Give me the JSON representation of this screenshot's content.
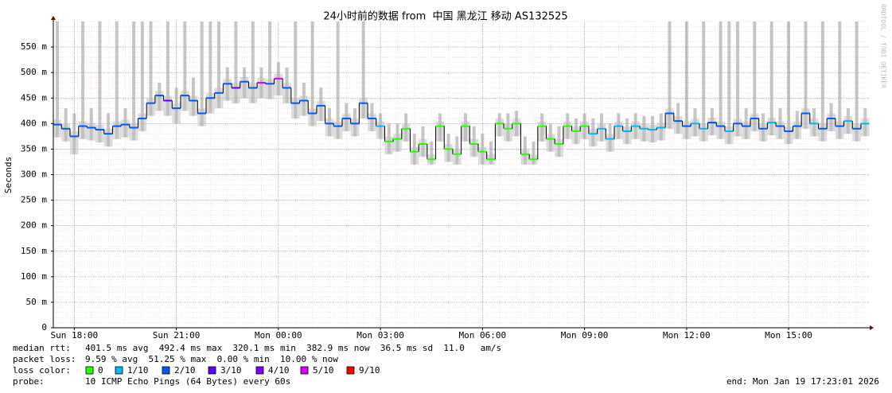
{
  "chart_data": {
    "type": "smokeping",
    "title": "24小时前的数据 from  中国 黑龙江 移动 AS132525",
    "y_label": "Seconds",
    "watermark": "RRDTOOL / TOBI OETIKER",
    "xlim": [
      17.3836,
      41.3836
    ],
    "xticks": [
      {
        "value": 18,
        "label": "Sun 18:00"
      },
      {
        "value": 21,
        "label": "Sun 21:00"
      },
      {
        "value": 24,
        "label": "Mon 00:00"
      },
      {
        "value": 27,
        "label": "Mon 03:00"
      },
      {
        "value": 30,
        "label": "Mon 06:00"
      },
      {
        "value": 33,
        "label": "Mon 09:00"
      },
      {
        "value": 36,
        "label": "Mon 12:00"
      },
      {
        "value": 39,
        "label": "Mon 15:00"
      }
    ],
    "ylim": [
      0,
      600
    ],
    "yticks": [
      0,
      {
        "value": 50,
        "label": "50 m"
      },
      {
        "value": 100,
        "label": "100 m"
      },
      {
        "value": 150,
        "label": "150 m"
      },
      {
        "value": 200,
        "label": "200 m"
      },
      {
        "value": 250,
        "label": "250 m"
      },
      {
        "value": 300,
        "label": "300 m"
      },
      {
        "value": 350,
        "label": "350 m"
      },
      {
        "value": 400,
        "label": "400 m"
      },
      {
        "value": 450,
        "label": "450 m"
      },
      {
        "value": 500,
        "label": "500 m"
      },
      {
        "value": 550,
        "label": "550 m"
      }
    ],
    "grid": true,
    "y_minor_step": 10,
    "x_minor_step": 0.5,
    "x": [
      17.5,
      17.75,
      18,
      18.25,
      18.5,
      18.75,
      19,
      19.25,
      19.5,
      19.75,
      20,
      20.25,
      20.5,
      20.75,
      21,
      21.25,
      21.5,
      21.75,
      22,
      22.25,
      22.5,
      22.75,
      23,
      23.25,
      23.5,
      23.75,
      24,
      24.25,
      24.5,
      24.75,
      25,
      25.25,
      25.5,
      25.75,
      26,
      26.25,
      26.5,
      26.75,
      27,
      27.25,
      27.5,
      27.75,
      28,
      28.25,
      28.5,
      28.75,
      29,
      29.25,
      29.5,
      29.75,
      30,
      30.25,
      30.5,
      30.75,
      31,
      31.25,
      31.5,
      31.75,
      32,
      32.25,
      32.5,
      32.75,
      33,
      33.25,
      33.5,
      33.75,
      34,
      34.25,
      34.5,
      34.75,
      35,
      35.25,
      35.5,
      35.75,
      36,
      36.25,
      36.5,
      36.75,
      37,
      37.25,
      37.5,
      37.75,
      38,
      38.25,
      38.5,
      38.75,
      39,
      39.25,
      39.5,
      39.75,
      40,
      40.25,
      40.5,
      40.75,
      41,
      41.25
    ],
    "median": [
      398,
      390,
      375,
      395,
      392,
      388,
      380,
      395,
      398,
      392,
      410,
      440,
      455,
      445,
      430,
      455,
      445,
      420,
      450,
      460,
      478,
      470,
      482,
      470,
      480,
      478,
      488,
      470,
      440,
      445,
      420,
      435,
      400,
      395,
      410,
      400,
      440,
      410,
      395,
      365,
      370,
      390,
      345,
      360,
      330,
      395,
      350,
      340,
      395,
      360,
      345,
      330,
      400,
      390,
      400,
      340,
      330,
      395,
      370,
      360,
      395,
      385,
      395,
      380,
      390,
      370,
      395,
      385,
      395,
      390,
      388,
      392,
      420,
      405,
      395,
      400,
      390,
      402,
      395,
      385,
      400,
      395,
      410,
      390,
      402,
      395,
      385,
      395,
      420,
      400,
      390,
      410,
      395,
      405,
      390,
      400
    ],
    "smoke_min": [
      373,
      365,
      340,
      370,
      367,
      363,
      355,
      370,
      373,
      367,
      385,
      415,
      425,
      415,
      400,
      425,
      415,
      395,
      420,
      430,
      445,
      440,
      450,
      440,
      450,
      448,
      455,
      440,
      410,
      415,
      395,
      405,
      375,
      370,
      385,
      375,
      410,
      385,
      370,
      340,
      345,
      365,
      320,
      335,
      320,
      365,
      325,
      320,
      365,
      335,
      320,
      320,
      375,
      365,
      375,
      320,
      320,
      365,
      345,
      335,
      370,
      360,
      370,
      355,
      365,
      345,
      370,
      360,
      370,
      365,
      363,
      367,
      390,
      380,
      370,
      375,
      365,
      377,
      370,
      360,
      375,
      370,
      385,
      365,
      377,
      370,
      360,
      370,
      390,
      375,
      365,
      385,
      370,
      380,
      365,
      375
    ],
    "smoke_max": [
      600,
      430,
      420,
      600,
      430,
      600,
      420,
      600,
      430,
      600,
      600,
      600,
      480,
      600,
      470,
      600,
      490,
      600,
      600,
      600,
      510,
      600,
      510,
      600,
      510,
      600,
      520,
      510,
      600,
      480,
      600,
      470,
      430,
      600,
      440,
      430,
      600,
      440,
      420,
      400,
      400,
      420,
      380,
      395,
      365,
      420,
      380,
      375,
      420,
      395,
      380,
      365,
      420,
      420,
      425,
      375,
      365,
      420,
      400,
      395,
      420,
      410,
      420,
      410,
      420,
      400,
      420,
      410,
      420,
      415,
      415,
      420,
      600,
      440,
      600,
      430,
      600,
      430,
      600,
      600,
      600,
      430,
      600,
      420,
      600,
      430,
      600,
      425,
      600,
      430,
      600,
      440,
      600,
      430,
      600,
      430
    ],
    "loss": [
      2,
      2,
      2,
      2,
      2,
      2,
      2,
      2,
      2,
      2,
      2,
      2,
      2,
      3,
      2,
      2,
      2,
      2,
      2,
      2,
      2,
      3,
      2,
      2,
      5,
      2,
      5,
      2,
      2,
      2,
      2,
      2,
      2,
      2,
      2,
      2,
      2,
      2,
      1,
      0,
      0,
      0,
      0,
      0,
      0,
      0,
      0,
      0,
      0,
      0,
      0,
      0,
      0,
      0,
      0,
      0,
      0,
      0,
      0,
      0,
      0,
      0,
      0,
      1,
      1,
      1,
      1,
      1,
      1,
      1,
      1,
      1,
      2,
      2,
      2,
      1,
      1,
      2,
      2,
      1,
      2,
      2,
      2,
      2,
      1,
      2,
      2,
      2,
      2,
      1,
      2,
      2,
      2,
      1,
      2,
      1
    ],
    "stats": [
      {
        "label": "median rtt:",
        "text": "401.5 ms avg  492.4 ms max  320.1 ms min  382.9 ms now  36.5 ms sd  11.0   am/s"
      },
      {
        "label": "packet loss:",
        "text": "9.59 % avg  51.25 % max  0.00 % min  10.00 % now"
      }
    ],
    "loss_label": "loss color:",
    "loss_legend": [
      {
        "value": 0,
        "label": "0",
        "color": "#26ff00"
      },
      {
        "value": 1,
        "label": "1/10",
        "color": "#00b8ff"
      },
      {
        "value": 2,
        "label": "2/10",
        "color": "#0059ff"
      },
      {
        "value": 3,
        "label": "3/10",
        "color": "#5e00ff"
      },
      {
        "value": 4,
        "label": "4/10",
        "color": "#7e00ff"
      },
      {
        "value": 5,
        "label": "5/10",
        "color": "#dd00ff"
      },
      {
        "value": 9,
        "label": "9/10",
        "color": "#ff0000"
      }
    ],
    "probe_label": "probe:",
    "probe": "10 ICMP Echo Pings (64 Bytes) every 60s",
    "end": "end: Mon Jan 19 17:23:01 2026"
  }
}
